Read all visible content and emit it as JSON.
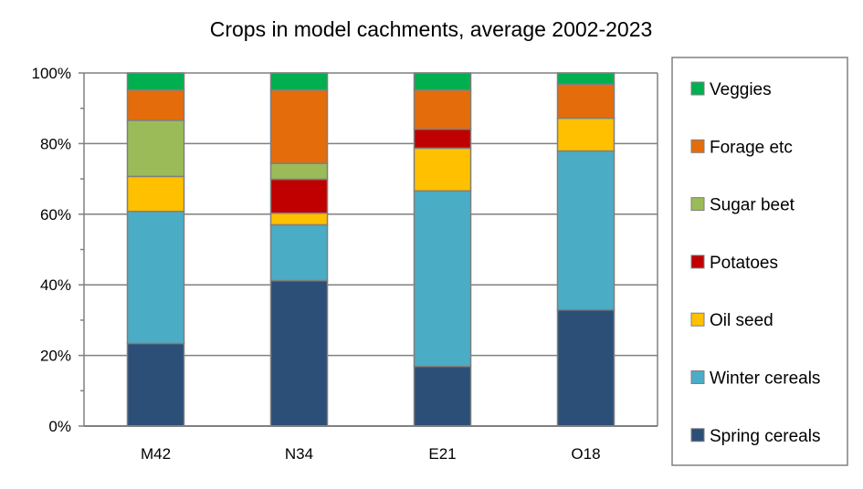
{
  "chart_data": {
    "type": "bar",
    "stacked": true,
    "title": "Crops in model cachments, average 2002-2023",
    "xlabel": "",
    "ylabel": "",
    "ylim": [
      0,
      100
    ],
    "yticks": [
      "0%",
      "20%",
      "40%",
      "60%",
      "80%",
      "100%"
    ],
    "grid": true,
    "legend_placement": "right",
    "categories": [
      "M42",
      "N34",
      "E21",
      "O18"
    ],
    "series": [
      {
        "name": "Spring cereals",
        "color": "#2c4f77",
        "values": [
          23.4,
          41.2,
          16.9,
          32.9
        ]
      },
      {
        "name": "Winter cereals",
        "color": "#4bacc6",
        "values": [
          37.4,
          15.8,
          49.7,
          45.0
        ]
      },
      {
        "name": "Oil seed",
        "color": "#ffc000",
        "values": [
          9.9,
          3.3,
          12.1,
          9.3
        ]
      },
      {
        "name": "Potatoes",
        "color": "#c00000",
        "values": [
          0,
          9.6,
          5.4,
          0
        ]
      },
      {
        "name": "Sugar beet",
        "color": "#9bbb59",
        "values": [
          15.9,
          4.5,
          0,
          0
        ]
      },
      {
        "name": "Forage etc",
        "color": "#e46c0a",
        "values": [
          8.6,
          20.8,
          11.1,
          9.6
        ]
      },
      {
        "name": "Veggies",
        "color": "#00b050",
        "values": [
          4.8,
          4.8,
          4.8,
          3.2
        ]
      }
    ]
  }
}
